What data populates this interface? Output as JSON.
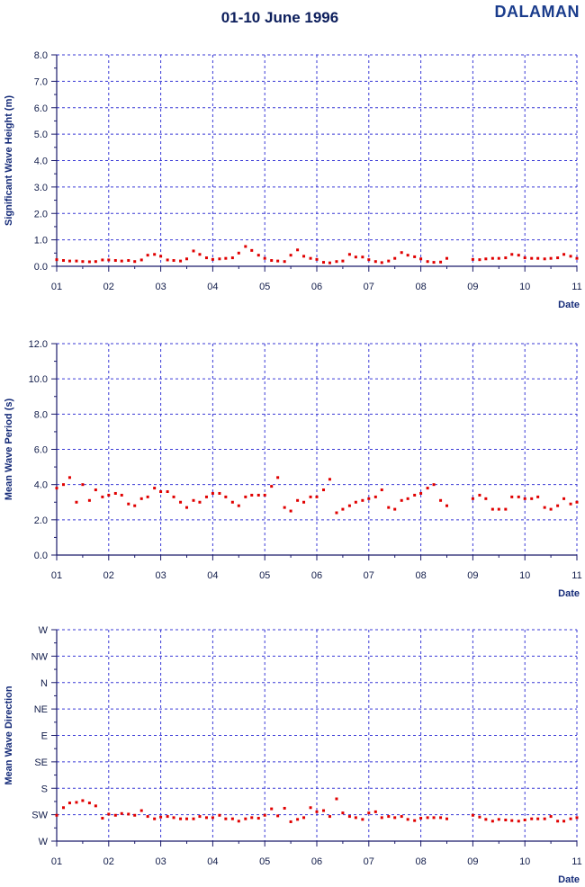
{
  "header": {
    "title": "01-10 June 1996",
    "station": "DALAMAN"
  },
  "colors": {
    "points": "#e00000",
    "grid": "#3a3ad6",
    "axis": "#1a1a6a",
    "text": "#142a78"
  },
  "chart_data": [
    {
      "type": "scatter",
      "ylabel": "Significant Wave Height (m)",
      "xlabel": "Date",
      "x_tick_labels": [
        "01",
        "02",
        "03",
        "04",
        "05",
        "06",
        "07",
        "08",
        "09",
        "10",
        "11"
      ],
      "y_tick_labels": [
        "0.0",
        "1.0",
        "2.0",
        "3.0",
        "4.0",
        "5.0",
        "6.0",
        "7.0",
        "8.0"
      ],
      "xlim": [
        1,
        11
      ],
      "ylim": [
        0,
        8
      ],
      "grid": true,
      "series": [
        {
          "x": [
            1.0,
            1.13,
            1.25,
            1.38,
            1.5,
            1.63,
            1.75,
            1.88,
            2.0,
            2.13,
            2.25,
            2.38,
            2.5,
            2.63,
            2.75,
            2.88,
            3.0,
            3.13,
            3.25,
            3.38,
            3.5,
            3.63,
            3.75,
            3.88,
            4.0,
            4.13,
            4.25,
            4.38,
            4.5,
            4.63,
            4.75,
            4.88,
            5.0,
            5.13,
            5.25,
            5.38,
            5.5,
            5.63,
            5.75,
            5.88,
            6.0,
            6.13,
            6.25,
            6.38,
            6.5,
            6.63,
            6.75,
            6.88,
            7.0,
            7.13,
            7.25,
            7.38,
            7.5,
            7.63,
            7.75,
            7.88,
            8.0,
            8.13,
            8.25,
            8.38,
            8.5,
            9.0,
            9.13,
            9.25,
            9.38,
            9.5,
            9.63,
            9.75,
            9.88,
            10.0,
            10.13,
            10.25,
            10.38,
            10.5,
            10.63,
            10.75,
            10.88,
            11.0
          ],
          "y": [
            0.25,
            0.22,
            0.2,
            0.2,
            0.18,
            0.17,
            0.18,
            0.24,
            0.24,
            0.22,
            0.2,
            0.22,
            0.18,
            0.24,
            0.42,
            0.45,
            0.38,
            0.24,
            0.22,
            0.2,
            0.28,
            0.58,
            0.45,
            0.32,
            0.26,
            0.28,
            0.3,
            0.32,
            0.5,
            0.75,
            0.6,
            0.42,
            0.3,
            0.22,
            0.2,
            0.18,
            0.42,
            0.62,
            0.38,
            0.3,
            0.26,
            0.15,
            0.13,
            0.18,
            0.2,
            0.45,
            0.35,
            0.35,
            0.25,
            0.18,
            0.14,
            0.2,
            0.3,
            0.52,
            0.42,
            0.36,
            0.28,
            0.18,
            0.15,
            0.16,
            0.3,
            0.26,
            0.25,
            0.28,
            0.3,
            0.3,
            0.32,
            0.45,
            0.42,
            0.32,
            0.3,
            0.3,
            0.28,
            0.3,
            0.32,
            0.45,
            0.38,
            0.3
          ]
        }
      ]
    },
    {
      "type": "scatter",
      "ylabel": "Mean Wave Period (s)",
      "xlabel": "Date",
      "x_tick_labels": [
        "01",
        "02",
        "03",
        "04",
        "05",
        "06",
        "07",
        "08",
        "09",
        "10",
        "11"
      ],
      "y_tick_labels": [
        "0.0",
        "2.0",
        "4.0",
        "6.0",
        "8.0",
        "10.0",
        "12.0"
      ],
      "xlim": [
        1,
        11
      ],
      "ylim": [
        0,
        12
      ],
      "grid": true,
      "series": [
        {
          "x": [
            1.0,
            1.13,
            1.25,
            1.38,
            1.5,
            1.63,
            1.75,
            1.88,
            2.0,
            2.13,
            2.25,
            2.38,
            2.5,
            2.63,
            2.75,
            2.88,
            3.0,
            3.13,
            3.25,
            3.38,
            3.5,
            3.63,
            3.75,
            3.88,
            4.0,
            4.13,
            4.25,
            4.38,
            4.5,
            4.63,
            4.75,
            4.88,
            5.0,
            5.13,
            5.25,
            5.38,
            5.5,
            5.63,
            5.75,
            5.88,
            6.0,
            6.13,
            6.25,
            6.38,
            6.5,
            6.63,
            6.75,
            6.88,
            7.0,
            7.13,
            7.25,
            7.38,
            7.5,
            7.63,
            7.75,
            7.88,
            8.0,
            8.13,
            8.25,
            8.38,
            8.5,
            9.0,
            9.13,
            9.25,
            9.38,
            9.5,
            9.63,
            9.75,
            9.88,
            10.0,
            10.13,
            10.25,
            10.38,
            10.5,
            10.63,
            10.75,
            10.88,
            11.0
          ],
          "y": [
            3.8,
            4.0,
            4.4,
            3.0,
            4.0,
            3.1,
            3.7,
            3.3,
            3.4,
            3.5,
            3.4,
            2.9,
            2.8,
            3.2,
            3.3,
            3.8,
            3.6,
            3.6,
            3.3,
            3.0,
            2.7,
            3.1,
            3.0,
            3.3,
            3.5,
            3.5,
            3.3,
            3.0,
            2.8,
            3.3,
            3.4,
            3.4,
            3.4,
            3.9,
            4.4,
            2.7,
            2.5,
            3.1,
            3.0,
            3.3,
            3.3,
            3.7,
            4.3,
            2.4,
            2.6,
            2.8,
            3.0,
            3.1,
            3.2,
            3.3,
            3.7,
            2.7,
            2.6,
            3.1,
            3.2,
            3.4,
            3.5,
            3.8,
            4.0,
            3.1,
            2.8,
            3.2,
            3.4,
            3.2,
            2.6,
            2.6,
            2.6,
            3.3,
            3.3,
            3.2,
            3.2,
            3.3,
            2.7,
            2.6,
            2.8,
            3.2,
            2.9,
            3.0
          ]
        }
      ]
    },
    {
      "type": "scatter",
      "ylabel": "Mean Wave Direction",
      "xlabel": "Date",
      "x_tick_labels": [
        "01",
        "02",
        "03",
        "04",
        "05",
        "06",
        "07",
        "08",
        "09",
        "10",
        "11"
      ],
      "y_tick_labels": [
        "W",
        "SW",
        "S",
        "SE",
        "E",
        "NE",
        "N",
        "NW",
        "W"
      ],
      "xlim": [
        1,
        11
      ],
      "ylim": [
        -90,
        270
      ],
      "grid": true,
      "series": [
        {
          "x": [
            1.0,
            1.13,
            1.25,
            1.38,
            1.5,
            1.63,
            1.75,
            1.88,
            2.0,
            2.13,
            2.25,
            2.38,
            2.5,
            2.63,
            2.75,
            2.88,
            3.0,
            3.13,
            3.25,
            3.38,
            3.5,
            3.63,
            3.75,
            3.88,
            4.0,
            4.13,
            4.25,
            4.38,
            4.5,
            4.63,
            4.75,
            4.88,
            5.0,
            5.13,
            5.25,
            5.38,
            5.5,
            5.63,
            5.75,
            5.88,
            6.0,
            6.13,
            6.25,
            6.38,
            6.5,
            6.63,
            6.75,
            6.88,
            7.0,
            7.13,
            7.25,
            7.38,
            7.5,
            7.63,
            7.75,
            7.88,
            8.0,
            8.13,
            8.25,
            8.38,
            8.5,
            9.0,
            9.13,
            9.25,
            9.38,
            9.5,
            9.63,
            9.75,
            9.88,
            10.0,
            10.13,
            10.25,
            10.38,
            10.5,
            10.63,
            10.75,
            10.88,
            11.0
          ],
          "y": [
            -46,
            -33,
            -25,
            -24,
            -21,
            -25,
            -30,
            -51,
            -44,
            -46,
            -43,
            -44,
            -46,
            -38,
            -48,
            -52,
            -49,
            -48,
            -50,
            -52,
            -52,
            -52,
            -48,
            -50,
            -50,
            -46,
            -52,
            -52,
            -56,
            -52,
            -50,
            -51,
            -46,
            -35,
            -47,
            -34,
            -57,
            -53,
            -50,
            -33,
            -40,
            -38,
            -48,
            -18,
            -42,
            -48,
            -50,
            -53,
            -42,
            -40,
            -50,
            -48,
            -50,
            -48,
            -53,
            -55,
            -51,
            -50,
            -50,
            -50,
            -52,
            -46,
            -49,
            -53,
            -56,
            -53,
            -54,
            -55,
            -56,
            -54,
            -52,
            -52,
            -52,
            -48,
            -56,
            -56,
            -52,
            -50
          ]
        }
      ]
    }
  ]
}
